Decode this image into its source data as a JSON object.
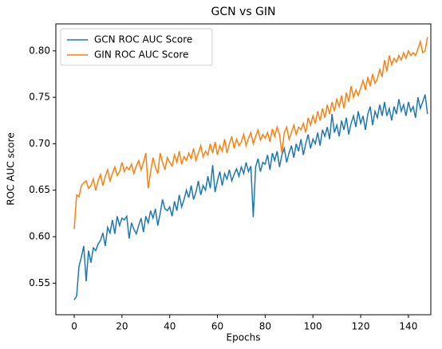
{
  "chart_data": {
    "type": "line",
    "title": "GCN vs GIN",
    "xlabel": "Epochs",
    "ylabel": "ROC AUC score",
    "x": [
      0,
      1,
      2,
      3,
      4,
      5,
      6,
      7,
      8,
      9,
      10,
      11,
      12,
      13,
      14,
      15,
      16,
      17,
      18,
      19,
      20,
      21,
      22,
      23,
      24,
      25,
      26,
      27,
      28,
      29,
      30,
      31,
      32,
      33,
      34,
      35,
      36,
      37,
      38,
      39,
      40,
      41,
      42,
      43,
      44,
      45,
      46,
      47,
      48,
      49,
      50,
      51,
      52,
      53,
      54,
      55,
      56,
      57,
      58,
      59,
      60,
      61,
      62,
      63,
      64,
      65,
      66,
      67,
      68,
      69,
      70,
      71,
      72,
      73,
      74,
      75,
      76,
      77,
      78,
      79,
      80,
      81,
      82,
      83,
      84,
      85,
      86,
      87,
      88,
      89,
      90,
      91,
      92,
      93,
      94,
      95,
      96,
      97,
      98,
      99,
      100,
      101,
      102,
      103,
      104,
      105,
      106,
      107,
      108,
      109,
      110,
      111,
      112,
      113,
      114,
      115,
      116,
      117,
      118,
      119,
      120,
      121,
      122,
      123,
      124,
      125,
      126,
      127,
      128,
      129,
      130,
      131,
      132,
      133,
      134,
      135,
      136,
      137,
      138,
      139,
      140,
      141,
      142,
      143,
      144,
      145,
      146,
      147,
      148
    ],
    "series": [
      {
        "name": "GCN ROC AUC Score",
        "color": "#1f77b4",
        "values": [
          0.532,
          0.536,
          0.568,
          0.578,
          0.59,
          0.552,
          0.585,
          0.572,
          0.588,
          0.585,
          0.592,
          0.596,
          0.604,
          0.59,
          0.61,
          0.604,
          0.618,
          0.603,
          0.622,
          0.612,
          0.62,
          0.618,
          0.622,
          0.598,
          0.615,
          0.608,
          0.603,
          0.612,
          0.62,
          0.605,
          0.622,
          0.615,
          0.628,
          0.62,
          0.63,
          0.612,
          0.625,
          0.64,
          0.63,
          0.628,
          0.632,
          0.622,
          0.638,
          0.628,
          0.645,
          0.632,
          0.64,
          0.65,
          0.642,
          0.655,
          0.64,
          0.648,
          0.66,
          0.645,
          0.655,
          0.65,
          0.665,
          0.652,
          0.677,
          0.648,
          0.66,
          0.67,
          0.655,
          0.668,
          0.662,
          0.672,
          0.66,
          0.667,
          0.673,
          0.665,
          0.675,
          0.668,
          0.68,
          0.67,
          0.676,
          0.621,
          0.675,
          0.684,
          0.67,
          0.68,
          0.678,
          0.688,
          0.672,
          0.69,
          0.682,
          0.692,
          0.675,
          0.688,
          0.695,
          0.68,
          0.69,
          0.698,
          0.685,
          0.7,
          0.692,
          0.705,
          0.688,
          0.7,
          0.71,
          0.695,
          0.705,
          0.7,
          0.712,
          0.698,
          0.715,
          0.708,
          0.718,
          0.705,
          0.732,
          0.712,
          0.72,
          0.708,
          0.725,
          0.715,
          0.728,
          0.71,
          0.722,
          0.73,
          0.718,
          0.735,
          0.722,
          0.73,
          0.715,
          0.732,
          0.74,
          0.72,
          0.735,
          0.728,
          0.742,
          0.73,
          0.745,
          0.73,
          0.738,
          0.725,
          0.74,
          0.732,
          0.748,
          0.735,
          0.742,
          0.73,
          0.745,
          0.735,
          0.74,
          0.728,
          0.75,
          0.738,
          0.745,
          0.753,
          0.732
        ]
      },
      {
        "name": "GIN ROC AUC Score",
        "color": "#ff7f0e",
        "values": [
          0.608,
          0.645,
          0.643,
          0.655,
          0.658,
          0.66,
          0.652,
          0.655,
          0.662,
          0.65,
          0.66,
          0.667,
          0.655,
          0.665,
          0.672,
          0.66,
          0.668,
          0.675,
          0.666,
          0.67,
          0.68,
          0.67,
          0.675,
          0.672,
          0.678,
          0.668,
          0.676,
          0.682,
          0.672,
          0.68,
          0.69,
          0.652,
          0.67,
          0.685,
          0.675,
          0.668,
          0.69,
          0.68,
          0.672,
          0.685,
          0.68,
          0.676,
          0.688,
          0.68,
          0.692,
          0.678,
          0.686,
          0.682,
          0.69,
          0.684,
          0.695,
          0.682,
          0.69,
          0.698,
          0.686,
          0.692,
          0.688,
          0.7,
          0.69,
          0.702,
          0.688,
          0.698,
          0.692,
          0.705,
          0.69,
          0.7,
          0.708,
          0.695,
          0.705,
          0.698,
          0.702,
          0.71,
          0.698,
          0.706,
          0.712,
          0.7,
          0.708,
          0.715,
          0.704,
          0.71,
          0.706,
          0.712,
          0.702,
          0.716,
          0.708,
          0.718,
          0.71,
          0.69,
          0.712,
          0.718,
          0.705,
          0.712,
          0.72,
          0.71,
          0.718,
          0.715,
          0.722,
          0.712,
          0.728,
          0.72,
          0.73,
          0.722,
          0.735,
          0.725,
          0.738,
          0.728,
          0.742,
          0.732,
          0.745,
          0.735,
          0.748,
          0.74,
          0.752,
          0.738,
          0.755,
          0.745,
          0.762,
          0.75,
          0.758,
          0.752,
          0.76,
          0.768,
          0.758,
          0.772,
          0.762,
          0.775,
          0.765,
          0.77,
          0.78,
          0.772,
          0.79,
          0.778,
          0.795,
          0.785,
          0.792,
          0.788,
          0.795,
          0.79,
          0.798,
          0.792,
          0.8,
          0.795,
          0.798,
          0.795,
          0.802,
          0.81,
          0.798,
          0.8,
          0.815
        ]
      }
    ],
    "xlim": [
      -7.7,
      149.4
    ],
    "xticks": [
      0,
      20,
      40,
      60,
      80,
      100,
      120,
      140
    ],
    "ylim": [
      0.516,
      0.829
    ],
    "yticks": [
      0.55,
      {
        "value": 0.6,
        "label": "0.60"
      },
      0.65,
      {
        "value": 0.7,
        "label": "0.70"
      },
      0.75,
      {
        "value": 0.8,
        "label": "0.80"
      }
    ],
    "legend": "upper left"
  }
}
